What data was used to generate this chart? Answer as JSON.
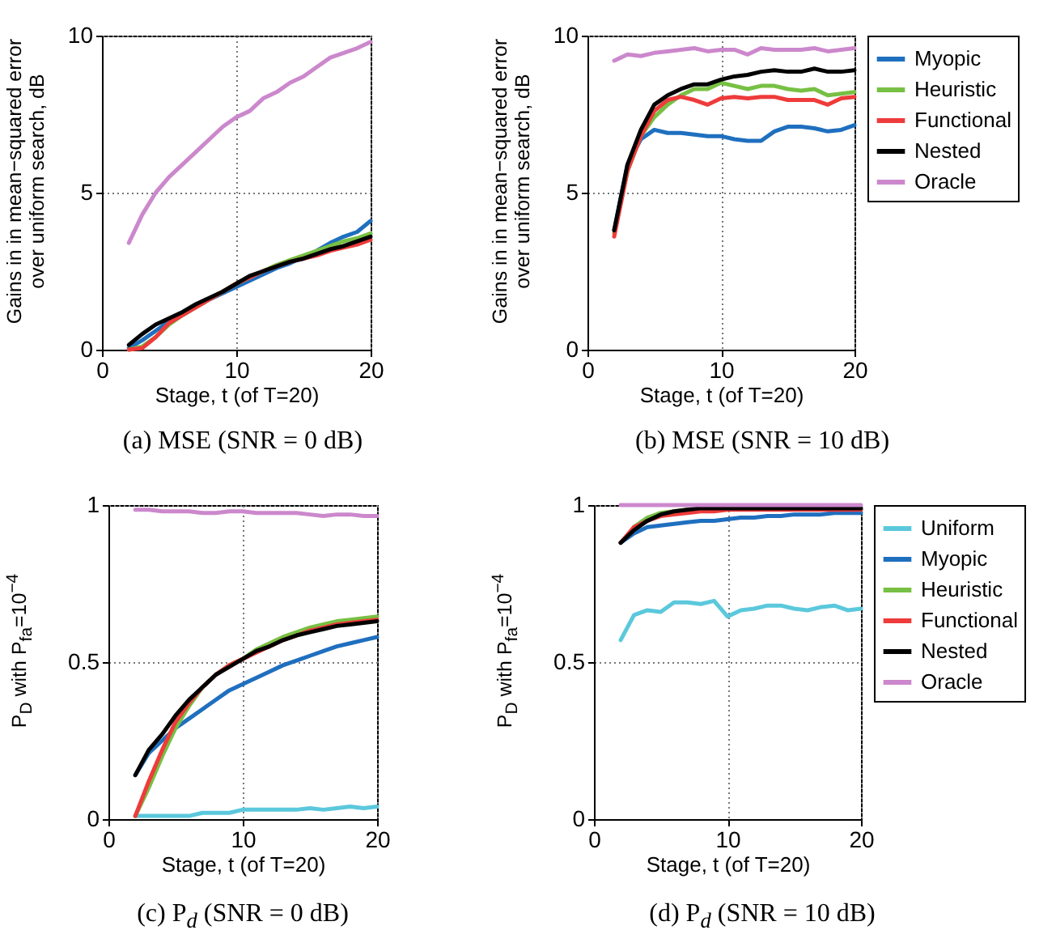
{
  "chart_data": [
    {
      "type": "line",
      "title": "(a) MSE (SNR = 0 dB)",
      "xlabel": "Stage, t (of T=20)",
      "ylabel": "Gains in in mean−squared error over uniform search, dB",
      "x": [
        2,
        3,
        4,
        5,
        6,
        7,
        8,
        9,
        10,
        11,
        12,
        13,
        14,
        15,
        16,
        17,
        18,
        19,
        20
      ],
      "xlim": [
        0,
        20
      ],
      "xticks": [
        0,
        10,
        20
      ],
      "ylim": [
        0,
        10
      ],
      "yticks": [
        0,
        5,
        10
      ],
      "grid": true,
      "series": [
        {
          "color": "#1f6fbf",
          "values": [
            0.05,
            0.3,
            0.6,
            0.9,
            1.15,
            1.4,
            1.6,
            1.8,
            2.0,
            2.2,
            2.4,
            2.6,
            2.75,
            2.95,
            3.15,
            3.4,
            3.6,
            3.75,
            4.1
          ]
        },
        {
          "color": "#77c043",
          "values": [
            0.0,
            0.1,
            0.4,
            0.8,
            1.1,
            1.35,
            1.6,
            1.85,
            2.1,
            2.3,
            2.5,
            2.7,
            2.85,
            3.0,
            3.15,
            3.3,
            3.45,
            3.55,
            3.7
          ]
        },
        {
          "color": "#ee3b3b",
          "values": [
            0.0,
            0.05,
            0.4,
            0.85,
            1.1,
            1.35,
            1.6,
            1.85,
            2.1,
            2.3,
            2.5,
            2.65,
            2.8,
            2.9,
            3.0,
            3.15,
            3.25,
            3.35,
            3.5
          ]
        },
        {
          "color": "#000000",
          "values": [
            0.15,
            0.5,
            0.8,
            1.0,
            1.2,
            1.45,
            1.65,
            1.85,
            2.1,
            2.35,
            2.5,
            2.65,
            2.8,
            2.9,
            3.05,
            3.2,
            3.3,
            3.45,
            3.6
          ]
        },
        {
          "color": "#cc88cc",
          "values": [
            3.4,
            4.3,
            5.0,
            5.5,
            5.9,
            6.3,
            6.7,
            7.1,
            7.4,
            7.6,
            8.0,
            8.2,
            8.5,
            8.7,
            9.0,
            9.3,
            9.45,
            9.6,
            9.8
          ]
        }
      ]
    },
    {
      "type": "line",
      "title": "(b) MSE (SNR = 10 dB)",
      "xlabel": "Stage, t (of T=20)",
      "ylabel": "Gains in in mean−squared error over uniform search, dB",
      "x": [
        2,
        3,
        4,
        5,
        6,
        7,
        8,
        9,
        10,
        11,
        12,
        13,
        14,
        15,
        16,
        17,
        18,
        19,
        20
      ],
      "xlim": [
        0,
        20
      ],
      "xticks": [
        0,
        10,
        20
      ],
      "ylim": [
        0,
        10
      ],
      "yticks": [
        0,
        5,
        10
      ],
      "grid": true,
      "legend": "right",
      "series": [
        {
          "name": "Myopic",
          "color": "#1f6fbf",
          "values": [
            3.8,
            5.9,
            6.7,
            7.0,
            6.9,
            6.9,
            6.85,
            6.8,
            6.8,
            6.7,
            6.65,
            6.65,
            6.95,
            7.1,
            7.1,
            7.05,
            6.95,
            7.0,
            7.15
          ]
        },
        {
          "name": "Heuristic",
          "color": "#77c043",
          "values": [
            3.7,
            5.7,
            6.8,
            7.4,
            7.8,
            8.1,
            8.3,
            8.3,
            8.5,
            8.4,
            8.3,
            8.4,
            8.4,
            8.3,
            8.25,
            8.3,
            8.1,
            8.15,
            8.2
          ]
        },
        {
          "name": "Functional",
          "color": "#ee3b3b",
          "values": [
            3.6,
            5.7,
            6.8,
            7.6,
            7.95,
            8.05,
            7.95,
            7.8,
            8.0,
            8.05,
            8.0,
            8.05,
            8.05,
            7.95,
            7.95,
            7.95,
            7.8,
            8.0,
            8.05
          ]
        },
        {
          "name": "Nested",
          "color": "#000000",
          "values": [
            3.8,
            5.9,
            7.0,
            7.8,
            8.1,
            8.3,
            8.45,
            8.45,
            8.6,
            8.7,
            8.75,
            8.85,
            8.9,
            8.85,
            8.85,
            8.95,
            8.85,
            8.85,
            8.9
          ]
        },
        {
          "name": "Oracle",
          "color": "#cc88cc",
          "values": [
            9.2,
            9.4,
            9.35,
            9.45,
            9.5,
            9.55,
            9.6,
            9.5,
            9.55,
            9.55,
            9.4,
            9.6,
            9.55,
            9.55,
            9.55,
            9.6,
            9.5,
            9.55,
            9.6
          ]
        }
      ]
    },
    {
      "type": "line",
      "title": "(c) P$_{d}$ (SNR = 0 dB)",
      "xlabel": "Stage, t (of T=20)",
      "ylabel": "P$_{D}$ with P$_{fa}$=10$^{−4}$",
      "x": [
        2,
        3,
        4,
        5,
        6,
        7,
        8,
        9,
        10,
        11,
        12,
        13,
        14,
        15,
        16,
        17,
        18,
        19,
        20
      ],
      "xlim": [
        0,
        20
      ],
      "xticks": [
        0,
        10,
        20
      ],
      "ylim": [
        0,
        1
      ],
      "yticks": [
        0,
        0.5,
        1
      ],
      "grid": true,
      "series": [
        {
          "color": "#5bc8dc",
          "values": [
            0.01,
            0.01,
            0.01,
            0.01,
            0.01,
            0.02,
            0.02,
            0.02,
            0.03,
            0.03,
            0.03,
            0.03,
            0.03,
            0.035,
            0.03,
            0.035,
            0.04,
            0.035,
            0.04
          ]
        },
        {
          "color": "#1f6fbf",
          "values": [
            0.14,
            0.21,
            0.25,
            0.29,
            0.32,
            0.35,
            0.38,
            0.41,
            0.43,
            0.45,
            0.47,
            0.49,
            0.505,
            0.52,
            0.535,
            0.55,
            0.56,
            0.57,
            0.58
          ]
        },
        {
          "color": "#77c043",
          "values": [
            0.01,
            0.1,
            0.2,
            0.29,
            0.36,
            0.42,
            0.46,
            0.49,
            0.51,
            0.54,
            0.56,
            0.58,
            0.595,
            0.61,
            0.62,
            0.63,
            0.635,
            0.64,
            0.645
          ]
        },
        {
          "color": "#ee3b3b",
          "values": [
            0.01,
            0.12,
            0.22,
            0.31,
            0.37,
            0.42,
            0.46,
            0.49,
            0.51,
            0.53,
            0.55,
            0.57,
            0.585,
            0.6,
            0.61,
            0.62,
            0.625,
            0.63,
            0.635
          ]
        },
        {
          "color": "#000000",
          "values": [
            0.14,
            0.22,
            0.27,
            0.33,
            0.38,
            0.42,
            0.46,
            0.485,
            0.51,
            0.535,
            0.55,
            0.57,
            0.585,
            0.595,
            0.605,
            0.615,
            0.62,
            0.625,
            0.63
          ]
        },
        {
          "color": "#cc88cc",
          "values": [
            0.985,
            0.985,
            0.98,
            0.98,
            0.98,
            0.975,
            0.975,
            0.98,
            0.98,
            0.975,
            0.975,
            0.975,
            0.975,
            0.97,
            0.965,
            0.97,
            0.97,
            0.965,
            0.965
          ]
        }
      ]
    },
    {
      "type": "line",
      "title": "(d) P$_{d}$ (SNR = 10 dB)",
      "xlabel": "Stage, t (of T=20)",
      "ylabel": "P$_{D}$ with P$_{fa}$=10$^{−4}$",
      "x": [
        2,
        3,
        4,
        5,
        6,
        7,
        8,
        9,
        10,
        11,
        12,
        13,
        14,
        15,
        16,
        17,
        18,
        19,
        20
      ],
      "xlim": [
        0,
        20
      ],
      "xticks": [
        0,
        10,
        20
      ],
      "ylim": [
        0,
        1
      ],
      "yticks": [
        0,
        0.5,
        1
      ],
      "grid": true,
      "legend": "right",
      "series": [
        {
          "name": "Uniform",
          "color": "#5bc8dc",
          "values": [
            0.57,
            0.65,
            0.665,
            0.66,
            0.69,
            0.69,
            0.685,
            0.695,
            0.645,
            0.665,
            0.67,
            0.68,
            0.68,
            0.67,
            0.665,
            0.675,
            0.68,
            0.665,
            0.67
          ]
        },
        {
          "name": "Myopic",
          "color": "#1f6fbf",
          "values": [
            0.88,
            0.91,
            0.93,
            0.935,
            0.94,
            0.945,
            0.95,
            0.95,
            0.955,
            0.96,
            0.96,
            0.965,
            0.965,
            0.97,
            0.97,
            0.97,
            0.975,
            0.975,
            0.975
          ]
        },
        {
          "name": "Heuristic",
          "color": "#77c043",
          "values": [
            null,
            0.93,
            0.96,
            0.975,
            0.98,
            0.985,
            null,
            null,
            null,
            null,
            null,
            null,
            null,
            null,
            null,
            null,
            null,
            null,
            null
          ]
        },
        {
          "name": "Functional",
          "color": "#ee3b3b",
          "values": [
            0.88,
            0.93,
            0.95,
            0.965,
            0.97,
            0.975,
            0.98,
            0.98,
            0.985,
            0.985,
            0.985,
            0.985,
            0.985,
            0.985,
            0.985,
            0.985,
            0.985,
            0.985,
            0.985
          ]
        },
        {
          "name": "Nested",
          "color": "#000000",
          "values": [
            0.88,
            0.92,
            0.95,
            0.97,
            0.98,
            0.985,
            0.99,
            0.99,
            0.99,
            0.99,
            0.99,
            0.99,
            0.99,
            0.99,
            0.99,
            0.99,
            0.99,
            0.99,
            0.99
          ]
        },
        {
          "name": "Oracle",
          "color": "#cc88cc",
          "values": [
            1,
            1,
            1,
            1,
            1,
            1,
            1,
            1,
            1,
            1,
            1,
            1,
            1,
            1,
            1,
            1,
            1,
            1,
            1
          ]
        }
      ]
    }
  ]
}
